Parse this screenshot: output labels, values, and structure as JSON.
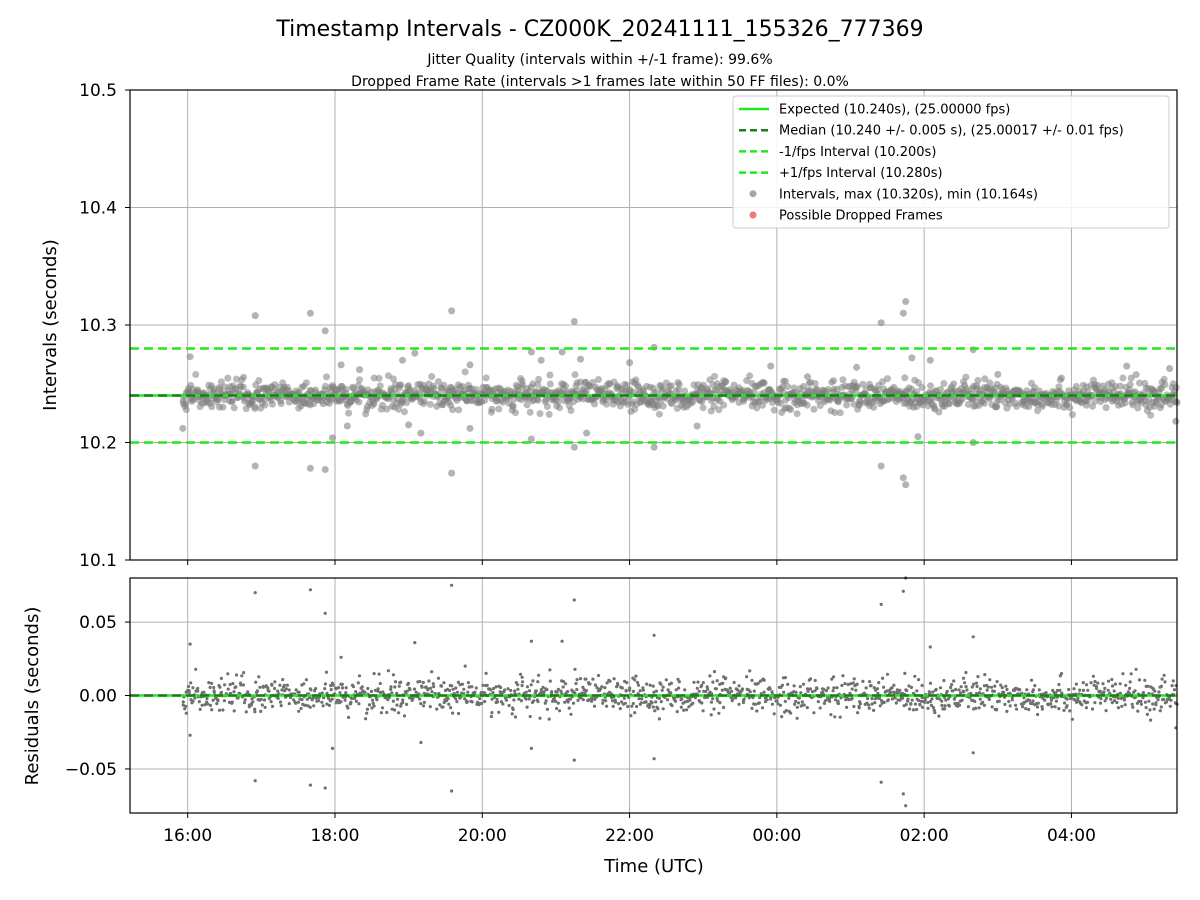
{
  "chart_data": [
    {
      "type": "scatter",
      "title": "Timestamp Intervals - CZ000K_20241111_155326_777369",
      "subtitle_lines": [
        "Jitter Quality (intervals within +/-1 frame): 99.6%",
        "Dropped Frame Rate (intervals >1 frames late within 50 FF files): 0.0%"
      ],
      "xlabel": "",
      "ylabel": "Intervals (seconds)",
      "x_axis_type": "time",
      "xlim": [
        "15:13",
        "05:26"
      ],
      "ylim": [
        10.1,
        10.5
      ],
      "yticks": [
        "10.1",
        "10.2",
        "10.3",
        "10.4",
        "10.5"
      ],
      "grid": true,
      "legend_position": "top-right",
      "legend": [
        {
          "label": "Expected (10.240s), (25.00000 fps)",
          "style": "solid",
          "color": "#22e822"
        },
        {
          "label": "Median (10.240 +/- 0.005 s), (25.00017 +/- 0.01 fps)",
          "style": "dashed",
          "color": "#1a7f1a"
        },
        {
          "label": "-1/fps Interval (10.200s)",
          "style": "dashed",
          "color": "#22e822"
        },
        {
          "label": "+1/fps Interval (10.280s)",
          "style": "dashed",
          "color": "#22e822"
        },
        {
          "label": "Intervals, max (10.320s), min (10.164s)",
          "style": "marker",
          "color": "#808080"
        },
        {
          "label": "Possible Dropped Frames",
          "style": "marker",
          "color": "#e8403c"
        }
      ],
      "reference_lines": [
        {
          "name": "expected",
          "y": 10.24,
          "style": "solid",
          "color": "#22e822"
        },
        {
          "name": "median",
          "y": 10.24,
          "style": "dashed",
          "color": "#1a7f1a"
        },
        {
          "name": "minus_one_fps",
          "y": 10.2,
          "style": "dashed",
          "color": "#22e822"
        },
        {
          "name": "plus_one_fps",
          "y": 10.28,
          "style": "dashed",
          "color": "#22e822"
        }
      ],
      "series": [
        {
          "name": "Intervals, max (10.320s), min (10.164s)",
          "color": "#808080",
          "baseline": 10.24,
          "x_range": [
            "15:56",
            "05:26"
          ],
          "notable_points": [
            {
              "x": "15:56",
              "y": 10.212
            },
            {
              "x": "16:02",
              "y": 10.273
            },
            {
              "x": "16:55",
              "y": 10.308
            },
            {
              "x": "16:55",
              "y": 10.18
            },
            {
              "x": "17:40",
              "y": 10.31
            },
            {
              "x": "17:40",
              "y": 10.178
            },
            {
              "x": "17:52",
              "y": 10.295
            },
            {
              "x": "17:52",
              "y": 10.177
            },
            {
              "x": "17:58",
              "y": 10.204
            },
            {
              "x": "18:05",
              "y": 10.266
            },
            {
              "x": "18:10",
              "y": 10.214
            },
            {
              "x": "18:20",
              "y": 10.262
            },
            {
              "x": "18:55",
              "y": 10.27
            },
            {
              "x": "19:00",
              "y": 10.215
            },
            {
              "x": "19:05",
              "y": 10.276
            },
            {
              "x": "19:10",
              "y": 10.208
            },
            {
              "x": "19:35",
              "y": 10.312
            },
            {
              "x": "19:35",
              "y": 10.174
            },
            {
              "x": "19:50",
              "y": 10.266
            },
            {
              "x": "19:50",
              "y": 10.212
            },
            {
              "x": "20:40",
              "y": 10.277
            },
            {
              "x": "20:40",
              "y": 10.203
            },
            {
              "x": "20:48",
              "y": 10.27
            },
            {
              "x": "21:05",
              "y": 10.277
            },
            {
              "x": "21:15",
              "y": 10.303
            },
            {
              "x": "21:15",
              "y": 10.196
            },
            {
              "x": "21:20",
              "y": 10.271
            },
            {
              "x": "21:25",
              "y": 10.208
            },
            {
              "x": "22:00",
              "y": 10.268
            },
            {
              "x": "22:20",
              "y": 10.281
            },
            {
              "x": "22:20",
              "y": 10.196
            },
            {
              "x": "22:55",
              "y": 10.214
            },
            {
              "x": "23:55",
              "y": 10.265
            },
            {
              "x": "00:25",
              "y": 10.256
            },
            {
              "x": "01:05",
              "y": 10.264
            },
            {
              "x": "01:25",
              "y": 10.302
            },
            {
              "x": "01:25",
              "y": 10.18
            },
            {
              "x": "01:45",
              "y": 10.32
            },
            {
              "x": "01:43",
              "y": 10.31
            },
            {
              "x": "01:43",
              "y": 10.17
            },
            {
              "x": "01:45",
              "y": 10.164
            },
            {
              "x": "01:50",
              "y": 10.272
            },
            {
              "x": "01:55",
              "y": 10.205
            },
            {
              "x": "02:05",
              "y": 10.27
            },
            {
              "x": "02:40",
              "y": 10.279
            },
            {
              "x": "02:40",
              "y": 10.2
            },
            {
              "x": "03:00",
              "y": 10.258
            },
            {
              "x": "04:45",
              "y": 10.265
            },
            {
              "x": "05:20",
              "y": 10.263
            },
            {
              "x": "05:25",
              "y": 10.218
            }
          ]
        },
        {
          "name": "Possible Dropped Frames",
          "color": "#e8403c",
          "points": []
        }
      ]
    },
    {
      "type": "scatter",
      "title": "",
      "xlabel": "Time (UTC)",
      "ylabel": "Residuals (seconds)",
      "x_axis_type": "time",
      "xlim": [
        "15:13",
        "05:26"
      ],
      "ylim": [
        -0.08,
        0.08
      ],
      "xticks": [
        "16:00",
        "18:00",
        "20:00",
        "22:00",
        "00:00",
        "02:00",
        "04:00"
      ],
      "yticks": [
        "−0.05",
        "0.00",
        "0.05"
      ],
      "grid": true,
      "reference_lines": [
        {
          "name": "zero",
          "y": 0.0,
          "style": "solid",
          "color": "#22e822"
        },
        {
          "name": "median-offset",
          "y": 0.0,
          "style": "dashed",
          "color": "#1a7f1a"
        }
      ],
      "series": [
        {
          "name": "Residuals",
          "color": "#707070",
          "baseline": 0.0,
          "x_range": [
            "15:56",
            "05:26"
          ],
          "notable_points": [
            {
              "x": "16:02",
              "y": 0.035
            },
            {
              "x": "16:02",
              "y": -0.027
            },
            {
              "x": "16:55",
              "y": 0.07
            },
            {
              "x": "16:55",
              "y": -0.058
            },
            {
              "x": "17:40",
              "y": 0.072
            },
            {
              "x": "17:40",
              "y": -0.061
            },
            {
              "x": "17:52",
              "y": 0.056
            },
            {
              "x": "17:52",
              "y": -0.063
            },
            {
              "x": "17:58",
              "y": -0.036
            },
            {
              "x": "18:05",
              "y": 0.026
            },
            {
              "x": "19:05",
              "y": 0.036
            },
            {
              "x": "19:10",
              "y": -0.032
            },
            {
              "x": "19:35",
              "y": 0.075
            },
            {
              "x": "19:35",
              "y": -0.065
            },
            {
              "x": "20:40",
              "y": 0.037
            },
            {
              "x": "20:40",
              "y": -0.036
            },
            {
              "x": "21:15",
              "y": 0.065
            },
            {
              "x": "21:15",
              "y": -0.044
            },
            {
              "x": "21:05",
              "y": 0.037
            },
            {
              "x": "22:20",
              "y": 0.041
            },
            {
              "x": "22:20",
              "y": -0.043
            },
            {
              "x": "01:25",
              "y": 0.062
            },
            {
              "x": "01:25",
              "y": -0.059
            },
            {
              "x": "01:45",
              "y": 0.08
            },
            {
              "x": "01:43",
              "y": 0.071
            },
            {
              "x": "01:43",
              "y": -0.067
            },
            {
              "x": "01:45",
              "y": -0.075
            },
            {
              "x": "02:05",
              "y": 0.033
            },
            {
              "x": "02:40",
              "y": 0.04
            },
            {
              "x": "02:40",
              "y": -0.039
            },
            {
              "x": "05:25",
              "y": -0.022
            }
          ]
        }
      ]
    }
  ]
}
